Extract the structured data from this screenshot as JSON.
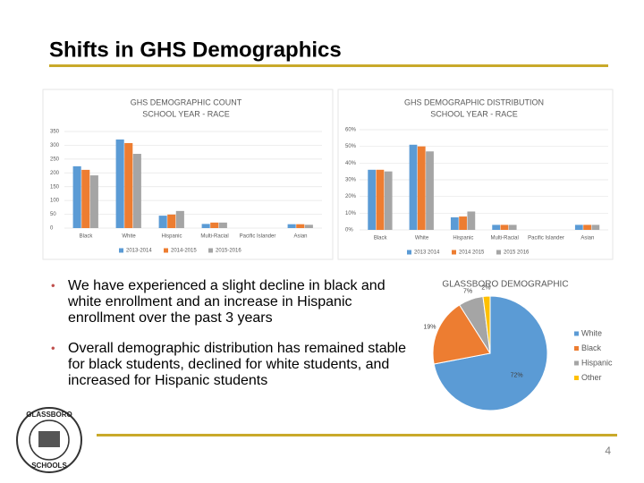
{
  "slide": {
    "title": "Shifts in GHS Demographics",
    "bullets": [
      "We have experienced a slight decline in black and white enrollment and an increase in Hispanic enrollment over the past 3 years",
      "Overall demographic distribution has remained stable for black students, declined for white students, and increased for Hispanic students"
    ],
    "page_number": "4",
    "logo": {
      "top": "GLASSBORO",
      "bottom": "SCHOOLS"
    }
  },
  "chart_data": [
    {
      "type": "bar",
      "title": "GHS DEMOGRAPHIC COUNT",
      "subtitle": "SCHOOL YEAR - RACE",
      "categories": [
        "Black",
        "White",
        "Hispanic",
        "Multi-Racial",
        "Pacific Islander",
        "Asian"
      ],
      "series": [
        {
          "name": "2013-2014",
          "color": "#5b9bd5",
          "values": [
            224,
            321,
            45,
            15,
            0,
            14
          ]
        },
        {
          "name": "2014-2015",
          "color": "#ed7d31",
          "values": [
            211,
            308,
            49,
            20,
            0,
            14
          ]
        },
        {
          "name": "2015-2016",
          "color": "#a5a5a5",
          "values": [
            191,
            269,
            62,
            20,
            0,
            12
          ]
        }
      ],
      "ylim": [
        0,
        350
      ],
      "yticks": [
        0,
        50,
        100,
        150,
        200,
        250,
        300,
        350
      ]
    },
    {
      "type": "bar",
      "title": "GHS DEMOGRAPHIC DISTRIBUTION",
      "subtitle": "SCHOOL YEAR - RACE",
      "categories": [
        "Black",
        "White",
        "Hispanic",
        "Multi-Racial",
        "Pacific Islander",
        "Asian"
      ],
      "series": [
        {
          "name": "2013 2014",
          "color": "#5b9bd5",
          "values": [
            36,
            51,
            7.5,
            3,
            0,
            3
          ]
        },
        {
          "name": "2014 2015",
          "color": "#ed7d31",
          "values": [
            36,
            50,
            8,
            3,
            0,
            3
          ]
        },
        {
          "name": "2015 2016",
          "color": "#a5a5a5",
          "values": [
            35,
            47,
            11,
            3,
            0,
            3
          ]
        }
      ],
      "ylim": [
        0,
        60
      ],
      "yticks": [
        {
          "value": 0,
          "label": "0%"
        },
        {
          "value": 10,
          "label": "10%"
        },
        {
          "value": 20,
          "label": "20%"
        },
        {
          "value": 30,
          "label": "30%"
        },
        {
          "value": 40,
          "label": "40%"
        },
        {
          "value": 50,
          "label": "50%"
        },
        {
          "value": 60,
          "label": "60%"
        }
      ]
    },
    {
      "type": "pie",
      "title": "GLASSBORO DEMOGRAPHIC",
      "categories": [
        "White",
        "Black",
        "Hispanic",
        "Other"
      ],
      "values": [
        72,
        19,
        7,
        2
      ],
      "value_labels": [
        "72%",
        "19%",
        "7%",
        "2%"
      ],
      "colors": [
        "#5b9bd5",
        "#ed7d31",
        "#a5a5a5",
        "#ffc000"
      ]
    }
  ]
}
